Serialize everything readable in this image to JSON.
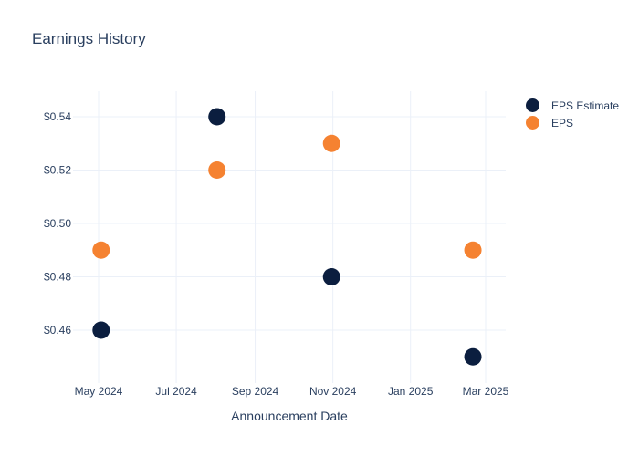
{
  "chart_data": {
    "type": "scatter",
    "title": "Earnings History",
    "xlabel": "Announcement Date",
    "ylabel": "",
    "x_ticks": [
      "May 2024",
      "Jul 2024",
      "Sep 2024",
      "Nov 2024",
      "Jan 2025",
      "Mar 2025"
    ],
    "y_ticks": [
      "$0.46",
      "$0.48",
      "$0.50",
      "$0.52",
      "$0.54"
    ],
    "ylim": [
      0.44,
      0.55
    ],
    "grid": true,
    "legend_position": "top-right",
    "series": [
      {
        "name": "EPS Estimate",
        "color": "#0b1e3f",
        "points": [
          {
            "x": "2024-05-03",
            "y": 0.46
          },
          {
            "x": "2024-08-02",
            "y": 0.54
          },
          {
            "x": "2024-10-31",
            "y": 0.48
          },
          {
            "x": "2025-02-19",
            "y": 0.45
          }
        ]
      },
      {
        "name": "EPS",
        "color": "#f58231",
        "points": [
          {
            "x": "2024-05-03",
            "y": 0.49
          },
          {
            "x": "2024-08-02",
            "y": 0.52
          },
          {
            "x": "2024-10-31",
            "y": 0.53
          },
          {
            "x": "2025-02-19",
            "y": 0.49
          }
        ]
      }
    ]
  }
}
